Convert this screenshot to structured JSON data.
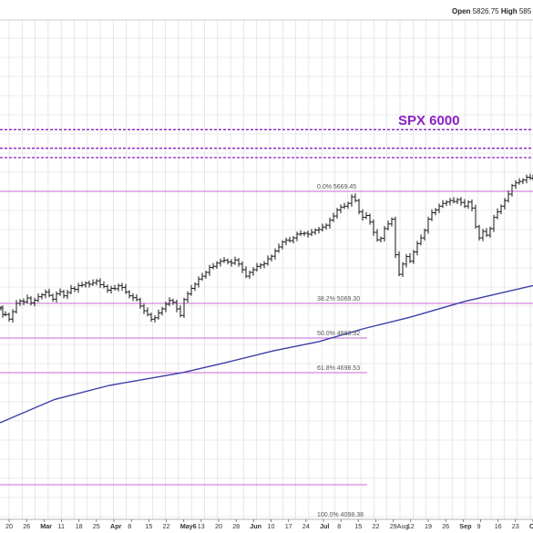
{
  "header": {
    "open_label": "Open",
    "open_value": "5826.75",
    "high_label": "High",
    "high_value": "585"
  },
  "colors": {
    "grid": "#d9d9d9",
    "price_bars": "#1a1a1a",
    "moving_average": "#3b3fa8",
    "fib_lines": "#c86ad6",
    "resistance_dashed": "#8b1fc4"
  },
  "chart_data": {
    "type": "ohlc",
    "title": "",
    "annotations": [
      {
        "text": "SPX 6000",
        "level": 6000
      }
    ],
    "resistance_levels_dashed": [
      6000,
      5900,
      5850
    ],
    "fib_levels": [
      {
        "label": "0.0%",
        "value": "5669.45"
      },
      {
        "label": "38.2%",
        "value": "5069.30"
      },
      {
        "label": "50.0%",
        "value": "4883.92"
      },
      {
        "label": "61.8%",
        "value": "4698.53"
      },
      {
        "label": "100.0%",
        "value": "4098.38"
      }
    ],
    "x_tick_labels": [
      "20",
      "26",
      "Mar",
      "11",
      "18",
      "25",
      "Apr",
      "8",
      "15",
      "22",
      "May6",
      "13",
      "20",
      "28",
      "Jun",
      "10",
      "17",
      "24",
      "Jul",
      "8",
      "15",
      "22",
      "29Aug",
      "12",
      "19",
      "26",
      "Sep",
      "9",
      "16",
      "23",
      "C"
    ],
    "series": [
      {
        "kind": "price_bars",
        "points": [
          {
            "x": 1,
            "y": 5045
          },
          {
            "x": 3,
            "y": 5010
          },
          {
            "x": 6,
            "y": 5010
          },
          {
            "x": 10,
            "y": 4985
          },
          {
            "x": 14,
            "y": 5025
          },
          {
            "x": 18,
            "y": 5070
          },
          {
            "x": 22,
            "y": 5082
          },
          {
            "x": 26,
            "y": 5078
          },
          {
            "x": 30,
            "y": 5098
          },
          {
            "x": 34,
            "y": 5072
          },
          {
            "x": 38,
            "y": 5086
          },
          {
            "x": 42,
            "y": 5105
          },
          {
            "x": 46,
            "y": 5115
          },
          {
            "x": 50,
            "y": 5130
          },
          {
            "x": 54,
            "y": 5112
          },
          {
            "x": 58,
            "y": 5092
          },
          {
            "x": 62,
            "y": 5120
          },
          {
            "x": 66,
            "y": 5132
          },
          {
            "x": 70,
            "y": 5110
          },
          {
            "x": 74,
            "y": 5128
          },
          {
            "x": 78,
            "y": 5150
          },
          {
            "x": 82,
            "y": 5145
          },
          {
            "x": 86,
            "y": 5165
          },
          {
            "x": 90,
            "y": 5168
          },
          {
            "x": 94,
            "y": 5178
          },
          {
            "x": 98,
            "y": 5172
          },
          {
            "x": 102,
            "y": 5180
          },
          {
            "x": 106,
            "y": 5190
          },
          {
            "x": 110,
            "y": 5170
          },
          {
            "x": 114,
            "y": 5160
          },
          {
            "x": 118,
            "y": 5140
          },
          {
            "x": 122,
            "y": 5150
          },
          {
            "x": 126,
            "y": 5148
          },
          {
            "x": 130,
            "y": 5165
          },
          {
            "x": 134,
            "y": 5155
          },
          {
            "x": 138,
            "y": 5130
          },
          {
            "x": 142,
            "y": 5110
          },
          {
            "x": 146,
            "y": 5100
          },
          {
            "x": 150,
            "y": 5090
          },
          {
            "x": 154,
            "y": 5055
          },
          {
            "x": 158,
            "y": 5030
          },
          {
            "x": 162,
            "y": 5010
          },
          {
            "x": 166,
            "y": 4985
          },
          {
            "x": 170,
            "y": 4992
          },
          {
            "x": 174,
            "y": 5018
          },
          {
            "x": 178,
            "y": 5040
          },
          {
            "x": 182,
            "y": 5065
          },
          {
            "x": 186,
            "y": 5085
          },
          {
            "x": 190,
            "y": 5075
          },
          {
            "x": 194,
            "y": 5040
          },
          {
            "x": 198,
            "y": 5005
          },
          {
            "x": 202,
            "y": 5090
          },
          {
            "x": 206,
            "y": 5120
          },
          {
            "x": 210,
            "y": 5150
          },
          {
            "x": 214,
            "y": 5172
          },
          {
            "x": 218,
            "y": 5200
          },
          {
            "x": 222,
            "y": 5215
          },
          {
            "x": 226,
            "y": 5235
          },
          {
            "x": 230,
            "y": 5262
          },
          {
            "x": 234,
            "y": 5268
          },
          {
            "x": 238,
            "y": 5285
          },
          {
            "x": 242,
            "y": 5295
          },
          {
            "x": 246,
            "y": 5300
          },
          {
            "x": 250,
            "y": 5292
          },
          {
            "x": 254,
            "y": 5285
          },
          {
            "x": 258,
            "y": 5302
          },
          {
            "x": 262,
            "y": 5280
          },
          {
            "x": 266,
            "y": 5250
          },
          {
            "x": 270,
            "y": 5215
          },
          {
            "x": 274,
            "y": 5235
          },
          {
            "x": 278,
            "y": 5250
          },
          {
            "x": 282,
            "y": 5268
          },
          {
            "x": 286,
            "y": 5275
          },
          {
            "x": 290,
            "y": 5282
          },
          {
            "x": 294,
            "y": 5308
          },
          {
            "x": 298,
            "y": 5322
          },
          {
            "x": 302,
            "y": 5350
          },
          {
            "x": 306,
            "y": 5372
          },
          {
            "x": 310,
            "y": 5398
          },
          {
            "x": 314,
            "y": 5408
          },
          {
            "x": 318,
            "y": 5405
          },
          {
            "x": 322,
            "y": 5420
          },
          {
            "x": 326,
            "y": 5440
          },
          {
            "x": 330,
            "y": 5443
          },
          {
            "x": 334,
            "y": 5445
          },
          {
            "x": 338,
            "y": 5440
          },
          {
            "x": 342,
            "y": 5450
          },
          {
            "x": 346,
            "y": 5462
          },
          {
            "x": 350,
            "y": 5465
          },
          {
            "x": 354,
            "y": 5478
          },
          {
            "x": 358,
            "y": 5488
          },
          {
            "x": 362,
            "y": 5515
          },
          {
            "x": 366,
            "y": 5537
          },
          {
            "x": 370,
            "y": 5570
          },
          {
            "x": 374,
            "y": 5585
          },
          {
            "x": 378,
            "y": 5590
          },
          {
            "x": 382,
            "y": 5605
          },
          {
            "x": 386,
            "y": 5640
          },
          {
            "x": 390,
            "y": 5620
          },
          {
            "x": 394,
            "y": 5560
          },
          {
            "x": 398,
            "y": 5530
          },
          {
            "x": 402,
            "y": 5540
          },
          {
            "x": 406,
            "y": 5505
          },
          {
            "x": 410,
            "y": 5450
          },
          {
            "x": 414,
            "y": 5410
          },
          {
            "x": 418,
            "y": 5418
          },
          {
            "x": 422,
            "y": 5470
          },
          {
            "x": 426,
            "y": 5495
          },
          {
            "x": 430,
            "y": 5520
          },
          {
            "x": 434,
            "y": 5330
          },
          {
            "x": 438,
            "y": 5225
          },
          {
            "x": 442,
            "y": 5280
          },
          {
            "x": 446,
            "y": 5320
          },
          {
            "x": 450,
            "y": 5295
          },
          {
            "x": 454,
            "y": 5345
          },
          {
            "x": 458,
            "y": 5390
          },
          {
            "x": 462,
            "y": 5420
          },
          {
            "x": 466,
            "y": 5460
          },
          {
            "x": 470,
            "y": 5520
          },
          {
            "x": 474,
            "y": 5555
          },
          {
            "x": 478,
            "y": 5570
          },
          {
            "x": 482,
            "y": 5590
          },
          {
            "x": 486,
            "y": 5605
          },
          {
            "x": 490,
            "y": 5612
          },
          {
            "x": 494,
            "y": 5620
          },
          {
            "x": 498,
            "y": 5615
          },
          {
            "x": 502,
            "y": 5625
          },
          {
            "x": 506,
            "y": 5610
          },
          {
            "x": 510,
            "y": 5590
          },
          {
            "x": 514,
            "y": 5612
          },
          {
            "x": 518,
            "y": 5580
          },
          {
            "x": 522,
            "y": 5480
          },
          {
            "x": 526,
            "y": 5420
          },
          {
            "x": 530,
            "y": 5455
          },
          {
            "x": 534,
            "y": 5435
          },
          {
            "x": 538,
            "y": 5470
          },
          {
            "x": 542,
            "y": 5530
          },
          {
            "x": 546,
            "y": 5560
          },
          {
            "x": 550,
            "y": 5590
          },
          {
            "x": 554,
            "y": 5620
          },
          {
            "x": 558,
            "y": 5655
          },
          {
            "x": 562,
            "y": 5700
          },
          {
            "x": 566,
            "y": 5715
          },
          {
            "x": 570,
            "y": 5722
          },
          {
            "x": 574,
            "y": 5730
          },
          {
            "x": 578,
            "y": 5745
          },
          {
            "x": 582,
            "y": 5740
          },
          {
            "x": 585,
            "y": 5748
          }
        ]
      },
      {
        "kind": "moving_average",
        "points": [
          {
            "x": 0,
            "y": 4430
          },
          {
            "x": 60,
            "y": 4555
          },
          {
            "x": 120,
            "y": 4630
          },
          {
            "x": 200,
            "y": 4698
          },
          {
            "x": 250,
            "y": 4755
          },
          {
            "x": 300,
            "y": 4815
          },
          {
            "x": 350,
            "y": 4865
          },
          {
            "x": 400,
            "y": 4935
          },
          {
            "x": 450,
            "y": 4995
          },
          {
            "x": 510,
            "y": 5080
          },
          {
            "x": 585,
            "y": 5165
          }
        ]
      }
    ]
  }
}
